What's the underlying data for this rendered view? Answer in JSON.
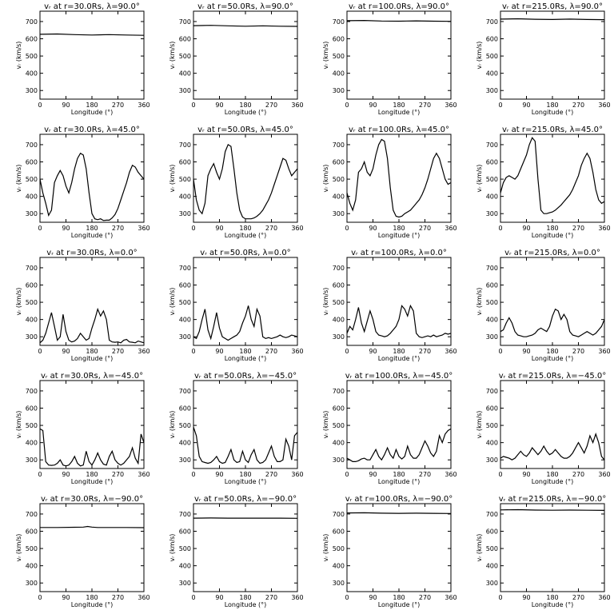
{
  "x_label": "Longitude (°)",
  "y_label": "vᵣ (km/s)",
  "xlim": [
    0,
    360
  ],
  "ylim": [
    250,
    760
  ],
  "x_ticks": [
    0,
    90,
    180,
    270,
    360
  ],
  "y_ticks": [
    300,
    400,
    500,
    600,
    700
  ],
  "chart_data": [
    {
      "type": "line",
      "title": "vᵣ at r=30.0Rs, λ=90.0°",
      "x": [
        0,
        60,
        120,
        180,
        240,
        300,
        360
      ],
      "y": [
        626,
        628,
        624,
        622,
        624,
        622,
        620
      ]
    },
    {
      "type": "line",
      "title": "vᵣ at r=50.0Rs, λ=90.0°",
      "x": [
        0,
        60,
        120,
        180,
        240,
        300,
        360
      ],
      "y": [
        676,
        678,
        675,
        673,
        675,
        673,
        672
      ]
    },
    {
      "type": "line",
      "title": "vᵣ at r=100.0Rs, λ=90.0°",
      "x": [
        0,
        60,
        120,
        180,
        240,
        300,
        360
      ],
      "y": [
        705,
        706,
        703,
        702,
        704,
        702,
        701
      ]
    },
    {
      "type": "line",
      "title": "vᵣ at r=215.0Rs, λ=90.0°",
      "x": [
        0,
        60,
        120,
        180,
        240,
        300,
        360
      ],
      "y": [
        714,
        716,
        713,
        712,
        714,
        712,
        711
      ]
    },
    {
      "type": "line",
      "title": "vᵣ at r=30.0Rs, λ=45.0°",
      "x": [
        0,
        10,
        20,
        30,
        40,
        50,
        60,
        70,
        80,
        90,
        100,
        110,
        120,
        130,
        140,
        150,
        160,
        170,
        180,
        190,
        200,
        210,
        220,
        230,
        240,
        250,
        260,
        270,
        280,
        290,
        300,
        310,
        320,
        330,
        340,
        350,
        360
      ],
      "y": [
        500,
        420,
        360,
        290,
        320,
        480,
        520,
        550,
        520,
        460,
        420,
        480,
        560,
        620,
        650,
        640,
        560,
        420,
        300,
        270,
        265,
        270,
        260,
        262,
        262,
        275,
        295,
        330,
        380,
        430,
        480,
        540,
        580,
        570,
        540,
        520,
        500
      ]
    },
    {
      "type": "line",
      "title": "vᵣ at r=50.0Rs, λ=45.0°",
      "x": [
        0,
        10,
        20,
        30,
        40,
        50,
        60,
        70,
        80,
        90,
        100,
        110,
        120,
        130,
        140,
        150,
        160,
        170,
        180,
        190,
        200,
        210,
        220,
        230,
        240,
        250,
        260,
        270,
        280,
        290,
        300,
        310,
        320,
        330,
        340,
        350,
        360
      ],
      "y": [
        500,
        380,
        320,
        300,
        360,
        520,
        560,
        590,
        540,
        500,
        560,
        660,
        700,
        690,
        560,
        420,
        320,
        280,
        270,
        270,
        270,
        275,
        285,
        300,
        320,
        350,
        380,
        420,
        470,
        520,
        570,
        620,
        610,
        560,
        520,
        540,
        560
      ]
    },
    {
      "type": "line",
      "title": "vᵣ at r=100.0Rs, λ=45.0°",
      "x": [
        0,
        10,
        20,
        30,
        40,
        50,
        60,
        70,
        80,
        90,
        100,
        110,
        120,
        130,
        140,
        150,
        160,
        170,
        180,
        190,
        200,
        210,
        220,
        230,
        240,
        250,
        260,
        270,
        280,
        290,
        300,
        310,
        320,
        330,
        340,
        350,
        360
      ],
      "y": [
        420,
        360,
        320,
        380,
        540,
        560,
        600,
        540,
        520,
        560,
        640,
        700,
        730,
        720,
        620,
        450,
        320,
        285,
        280,
        285,
        300,
        310,
        320,
        340,
        360,
        380,
        410,
        450,
        500,
        560,
        620,
        650,
        620,
        560,
        500,
        470,
        480
      ]
    },
    {
      "type": "line",
      "title": "vᵣ at r=215.0Rs, λ=45.0°",
      "x": [
        0,
        10,
        20,
        30,
        40,
        50,
        60,
        70,
        80,
        90,
        100,
        110,
        120,
        130,
        140,
        150,
        160,
        170,
        180,
        190,
        200,
        210,
        220,
        230,
        240,
        250,
        260,
        270,
        280,
        290,
        300,
        310,
        320,
        330,
        340,
        350,
        360
      ],
      "y": [
        420,
        480,
        510,
        520,
        510,
        500,
        520,
        560,
        600,
        640,
        700,
        740,
        720,
        500,
        320,
        300,
        300,
        305,
        310,
        320,
        335,
        350,
        370,
        390,
        410,
        440,
        480,
        520,
        580,
        620,
        650,
        620,
        540,
        440,
        380,
        360,
        370
      ]
    },
    {
      "type": "line",
      "title": "vᵣ at r=30.0Rs, λ=0.0°",
      "x": [
        0,
        10,
        20,
        30,
        40,
        50,
        60,
        70,
        80,
        90,
        100,
        110,
        120,
        130,
        140,
        150,
        160,
        170,
        180,
        190,
        200,
        210,
        220,
        230,
        240,
        250,
        260,
        270,
        280,
        290,
        300,
        310,
        320,
        330,
        340,
        350,
        360
      ],
      "y": [
        265,
        280,
        320,
        380,
        440,
        360,
        280,
        300,
        430,
        330,
        280,
        270,
        275,
        290,
        320,
        300,
        280,
        290,
        350,
        400,
        460,
        420,
        450,
        400,
        280,
        270,
        268,
        270,
        265,
        280,
        285,
        270,
        268,
        265,
        275,
        270,
        265
      ]
    },
    {
      "type": "line",
      "title": "vᵣ at r=50.0Rs, λ=0.0°",
      "x": [
        0,
        10,
        20,
        30,
        40,
        50,
        60,
        70,
        80,
        90,
        100,
        110,
        120,
        130,
        140,
        150,
        160,
        170,
        180,
        190,
        200,
        210,
        220,
        230,
        240,
        250,
        260,
        270,
        280,
        290,
        300,
        310,
        320,
        330,
        340,
        350,
        360
      ],
      "y": [
        300,
        290,
        330,
        400,
        460,
        340,
        290,
        360,
        440,
        350,
        300,
        290,
        280,
        290,
        300,
        310,
        330,
        380,
        420,
        480,
        400,
        360,
        460,
        420,
        300,
        290,
        295,
        290,
        295,
        300,
        310,
        300,
        295,
        300,
        310,
        305,
        300
      ]
    },
    {
      "type": "line",
      "title": "vᵣ at r=100.0Rs, λ=0.0°",
      "x": [
        0,
        10,
        20,
        30,
        40,
        50,
        60,
        70,
        80,
        90,
        100,
        110,
        120,
        130,
        140,
        150,
        160,
        170,
        180,
        190,
        200,
        210,
        220,
        230,
        240,
        250,
        260,
        270,
        280,
        290,
        300,
        310,
        320,
        330,
        340,
        350,
        360
      ],
      "y": [
        320,
        360,
        340,
        400,
        470,
        380,
        330,
        390,
        450,
        400,
        330,
        310,
        305,
        300,
        305,
        320,
        340,
        360,
        400,
        480,
        460,
        420,
        480,
        450,
        320,
        300,
        295,
        300,
        305,
        300,
        310,
        300,
        305,
        310,
        320,
        315,
        320
      ]
    },
    {
      "type": "line",
      "title": "vᵣ at r=215.0Rs, λ=0.0°",
      "x": [
        0,
        10,
        20,
        30,
        40,
        50,
        60,
        70,
        80,
        90,
        100,
        110,
        120,
        130,
        140,
        150,
        160,
        170,
        180,
        190,
        200,
        210,
        220,
        230,
        240,
        250,
        260,
        270,
        280,
        290,
        300,
        310,
        320,
        330,
        340,
        350,
        360
      ],
      "y": [
        330,
        340,
        380,
        410,
        380,
        330,
        310,
        305,
        300,
        300,
        305,
        310,
        320,
        340,
        350,
        340,
        330,
        360,
        420,
        460,
        450,
        400,
        430,
        400,
        330,
        310,
        305,
        300,
        310,
        320,
        330,
        320,
        310,
        320,
        340,
        360,
        400
      ]
    },
    {
      "type": "line",
      "title": "vᵣ at r=30.0Rs, λ=−45.0°",
      "x": [
        0,
        10,
        20,
        30,
        40,
        50,
        60,
        70,
        80,
        90,
        100,
        110,
        120,
        130,
        140,
        150,
        160,
        170,
        180,
        190,
        200,
        210,
        220,
        230,
        240,
        250,
        260,
        270,
        280,
        290,
        300,
        310,
        320,
        330,
        340,
        350,
        360
      ],
      "y": [
        480,
        470,
        290,
        270,
        268,
        270,
        280,
        300,
        270,
        265,
        270,
        290,
        320,
        280,
        265,
        270,
        350,
        290,
        270,
        300,
        340,
        300,
        275,
        270,
        320,
        350,
        300,
        280,
        270,
        280,
        300,
        320,
        370,
        310,
        280,
        450,
        400
      ]
    },
    {
      "type": "line",
      "title": "vᵣ at r=50.0Rs, λ=−45.0°",
      "x": [
        0,
        10,
        20,
        30,
        40,
        50,
        60,
        70,
        80,
        90,
        100,
        110,
        120,
        130,
        140,
        150,
        160,
        170,
        180,
        190,
        200,
        210,
        220,
        230,
        240,
        250,
        260,
        270,
        280,
        290,
        300,
        310,
        320,
        330,
        340,
        350,
        360
      ],
      "y": [
        490,
        440,
        320,
        290,
        285,
        280,
        285,
        300,
        320,
        290,
        280,
        285,
        320,
        360,
        300,
        285,
        290,
        350,
        300,
        285,
        330,
        360,
        300,
        280,
        285,
        300,
        340,
        380,
        320,
        290,
        290,
        300,
        420,
        380,
        300,
        440,
        460
      ]
    },
    {
      "type": "line",
      "title": "vᵣ at r=100.0Rs, λ=−45.0°",
      "x": [
        0,
        10,
        20,
        30,
        40,
        50,
        60,
        70,
        80,
        90,
        100,
        110,
        120,
        130,
        140,
        150,
        160,
        170,
        180,
        190,
        200,
        210,
        220,
        230,
        240,
        250,
        260,
        270,
        280,
        290,
        300,
        310,
        320,
        330,
        340,
        350,
        360
      ],
      "y": [
        310,
        300,
        290,
        290,
        295,
        305,
        310,
        300,
        300,
        330,
        360,
        320,
        300,
        330,
        370,
        330,
        310,
        360,
        320,
        305,
        320,
        380,
        330,
        310,
        310,
        330,
        370,
        410,
        380,
        340,
        320,
        350,
        440,
        400,
        450,
        470,
        480
      ]
    },
    {
      "type": "line",
      "title": "vᵣ at r=215.0Rs, λ=−45.0°",
      "x": [
        0,
        10,
        20,
        30,
        40,
        50,
        60,
        70,
        80,
        90,
        100,
        110,
        120,
        130,
        140,
        150,
        160,
        170,
        180,
        190,
        200,
        210,
        220,
        230,
        240,
        250,
        260,
        270,
        280,
        290,
        300,
        310,
        320,
        330,
        340,
        350,
        360
      ],
      "y": [
        310,
        320,
        315,
        310,
        300,
        310,
        330,
        350,
        330,
        320,
        340,
        370,
        350,
        330,
        350,
        380,
        350,
        330,
        340,
        360,
        340,
        320,
        310,
        310,
        320,
        340,
        370,
        400,
        370,
        340,
        380,
        440,
        400,
        450,
        400,
        320,
        300
      ]
    },
    {
      "type": "line",
      "title": "vᵣ at r=30.0Rs, λ=−90.0°",
      "x": [
        0,
        60,
        120,
        150,
        165,
        180,
        200,
        240,
        300,
        360
      ],
      "y": [
        622,
        622,
        623,
        624,
        628,
        624,
        622,
        622,
        622,
        621
      ]
    },
    {
      "type": "line",
      "title": "vᵣ at r=50.0Rs, λ=−90.0°",
      "x": [
        0,
        60,
        120,
        180,
        240,
        300,
        360
      ],
      "y": [
        676,
        677,
        676,
        676,
        676,
        676,
        675
      ]
    },
    {
      "type": "line",
      "title": "vᵣ at r=100.0Rs, λ=−90.0°",
      "x": [
        0,
        60,
        120,
        180,
        240,
        300,
        360
      ],
      "y": [
        706,
        707,
        705,
        704,
        705,
        704,
        703
      ]
    },
    {
      "type": "line",
      "title": "vᵣ at r=215.0Rs, λ=−90.0°",
      "x": [
        0,
        60,
        120,
        180,
        240,
        300,
        360
      ],
      "y": [
        724,
        725,
        723,
        722,
        723,
        722,
        721
      ]
    }
  ]
}
